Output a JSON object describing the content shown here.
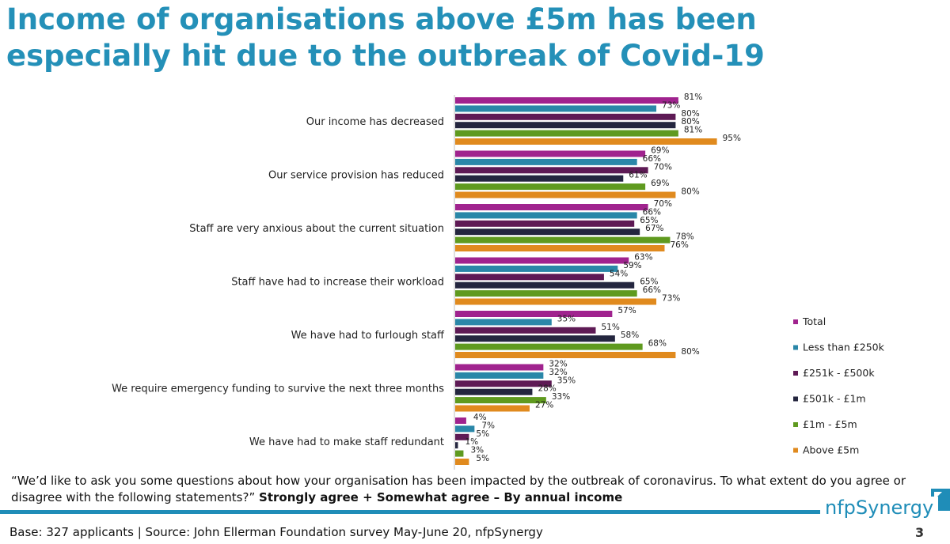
{
  "title_lines": [
    "Income of organisations above £5m has been",
    "especially hit due to the outbreak of Covid-19"
  ],
  "question": "“We’d like to ask you some questions about how your organisation has been impacted by the outbreak of coronavirus. To what extent do you agree or disagree with the following statements?”",
  "question_emphasis": "Strongly agree + Somewhat agree – By annual income",
  "base": "Base: 327 applicants | Source: John Ellerman Foundation survey May-June 20, nfpSynergy",
  "brand": "nfpSynergy",
  "page_number": "3",
  "chart_data": {
    "type": "bar",
    "orientation": "horizontal",
    "categories": [
      "Our income has decreased",
      "Our service provision has reduced",
      "Staff are very anxious about the current situation",
      "Staff have had to increase their workload",
      "We have had to furlough staff",
      "We require emergency funding to survive the next three months",
      "We have had to make staff redundant"
    ],
    "series": [
      {
        "name": "Total",
        "color": "#a0238e",
        "values": [
          81,
          69,
          70,
          63,
          57,
          32,
          4
        ]
      },
      {
        "name": "Less than £250k",
        "color": "#2a87a8",
        "values": [
          73,
          66,
          66,
          59,
          35,
          32,
          7
        ]
      },
      {
        "name": "£251k - £500k",
        "color": "#5e1a55",
        "values": [
          80,
          70,
          65,
          54,
          51,
          35,
          5
        ]
      },
      {
        "name": "£501k - £1m",
        "color": "#24263f",
        "values": [
          80,
          61,
          67,
          65,
          58,
          28,
          1
        ]
      },
      {
        "name": "£1m - £5m",
        "color": "#5f9a1f",
        "values": [
          81,
          69,
          78,
          66,
          68,
          33,
          3
        ]
      },
      {
        "name": "Above £5m",
        "color": "#e08a1e",
        "values": [
          95,
          80,
          76,
          73,
          80,
          27,
          5
        ]
      }
    ],
    "value_suffix": "%",
    "xlim": [
      0,
      100
    ],
    "legend_position": "right",
    "grid": false
  }
}
